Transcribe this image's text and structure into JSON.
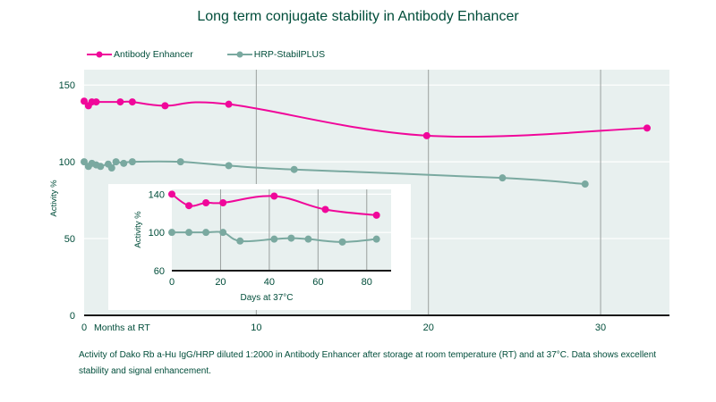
{
  "title": "Long term conjugate stability in Antibody Enhancer",
  "colors": {
    "antibody_enhancer": "#f0079a",
    "hrp_stabilplus": "#7aa9a0",
    "plot_bg": "#e8f0ef",
    "text": "#004d3a"
  },
  "caption": "Activity of Dako Rb a-Hu IgG/HRP diluted 1:2000 in Antibody Enhancer after storage at room temperature (RT) and at 37°C. Data shows excellent stability and signal enhancement.",
  "chart_data": [
    {
      "type": "line",
      "title": "Long term conjugate stability in Antibody Enhancer",
      "xlabel": "Months at RT",
      "ylabel": "Activity %",
      "xlim": [
        0,
        34
      ],
      "ylim": [
        0,
        160
      ],
      "xticks": [
        0,
        10,
        20,
        30
      ],
      "yticks": [
        0,
        50,
        100,
        150
      ],
      "grid": "vertical at 10,20,30; horizontal at 50,100,150",
      "legend": "top-left",
      "series": [
        {
          "name": "Antibody Enhancer",
          "color": "#f0079a",
          "x": [
            0,
            0.25,
            0.45,
            0.7,
            2.1,
            2.8,
            4.7,
            8.4,
            19.9,
            32.7
          ],
          "y": [
            139.5,
            136.5,
            139,
            139,
            139,
            139,
            136.5,
            137.5,
            117,
            122
          ]
        },
        {
          "name": "HRP-StabilPLUS",
          "color": "#7aa9a0",
          "x": [
            0,
            0.25,
            0.45,
            0.7,
            0.95,
            1.4,
            1.6,
            1.85,
            2.3,
            2.8,
            5.6,
            8.4,
            12.2,
            24.3,
            29.1
          ],
          "y": [
            100,
            97,
            99,
            98,
            97,
            98.5,
            96,
            100,
            99,
            100,
            100,
            97.5,
            95,
            89.5,
            85.5
          ]
        }
      ]
    },
    {
      "type": "line",
      "title": "",
      "xlabel": "Days at 37°C",
      "ylabel": "Activity %",
      "xlim": [
        0,
        90
      ],
      "ylim": [
        60,
        145
      ],
      "xticks": [
        0,
        20,
        40,
        60,
        80
      ],
      "yticks": [
        60,
        100,
        140
      ],
      "grid": "vertical at 20,40,60,80",
      "legend": "none",
      "series": [
        {
          "name": "Antibody Enhancer",
          "color": "#f0079a",
          "x": [
            0,
            7,
            14,
            21,
            42,
            63,
            84
          ],
          "y": [
            140,
            128,
            131,
            131,
            138,
            124,
            118
          ]
        },
        {
          "name": "HRP-StabilPLUS",
          "color": "#7aa9a0",
          "x": [
            0,
            7,
            14,
            21,
            28,
            42,
            49,
            56,
            70,
            84
          ],
          "y": [
            100,
            100,
            100,
            100,
            91,
            93,
            94,
            93,
            90,
            93
          ]
        }
      ]
    }
  ]
}
